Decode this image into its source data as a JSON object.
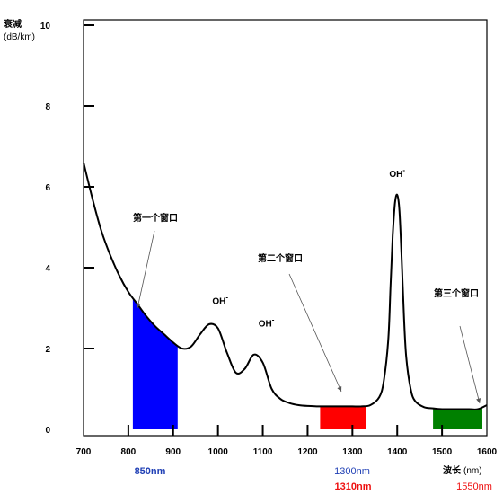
{
  "chart_data": {
    "type": "line",
    "title": "",
    "ylabel": "衰减",
    "yunit": "(dB/km)",
    "xlabel": "波长",
    "xunit": "(nm)",
    "xlim": [
      700,
      1600
    ],
    "ylim": [
      0,
      10
    ],
    "x_ticks": [
      "700",
      "800",
      "900",
      "1000",
      "1100",
      "1200",
      "1300",
      "1400",
      "1500",
      "1600"
    ],
    "y_ticks": [
      "0",
      "2",
      "4",
      "6",
      "8",
      "10"
    ],
    "grid": false,
    "series": [
      {
        "x": [
          700,
          720,
          740,
          760,
          780,
          800,
          820,
          840,
          860,
          880,
          900,
          920,
          940,
          960,
          980,
          1000,
          1020,
          1040,
          1060,
          1080,
          1100,
          1120,
          1140,
          1160,
          1180,
          1200,
          1220,
          1240,
          1260,
          1280,
          1300,
          1320,
          1340,
          1360,
          1370,
          1380,
          1385,
          1390,
          1395,
          1400,
          1405,
          1410,
          1415,
          1420,
          1430,
          1440,
          1460,
          1480,
          1500,
          1520,
          1540,
          1560,
          1580,
          1600
        ],
        "values": [
          6.6,
          5.7,
          4.9,
          4.3,
          3.8,
          3.4,
          3.1,
          2.8,
          2.55,
          2.35,
          2.15,
          2.0,
          2.05,
          2.35,
          2.6,
          2.5,
          1.9,
          1.4,
          1.5,
          1.85,
          1.65,
          1.0,
          0.75,
          0.65,
          0.6,
          0.58,
          0.57,
          0.57,
          0.57,
          0.57,
          0.57,
          0.57,
          0.6,
          0.8,
          1.2,
          2.2,
          3.5,
          4.8,
          5.6,
          5.8,
          5.4,
          4.2,
          2.8,
          1.8,
          1.0,
          0.7,
          0.55,
          0.52,
          0.5,
          0.5,
          0.5,
          0.5,
          0.5,
          0.6
        ],
        "color": "#000000"
      }
    ],
    "windows": [
      {
        "label": "第一个窗口",
        "x_range": [
          810,
          910
        ],
        "color": "#0000ff",
        "wavelength": "850nm",
        "wavelength_color": "#1f3fb5"
      },
      {
        "label": "第二个窗口",
        "x_range": [
          1228,
          1330
        ],
        "color": "#ff0000",
        "wavelength": "1300nm",
        "wavelength_color": "#1f3fb5",
        "wavelength2": "1310nm",
        "wavelength2_color": "#ee1111"
      },
      {
        "label": "第三个窗口",
        "x_range": [
          1480,
          1590
        ],
        "color": "#008000",
        "wavelength": "1550nm",
        "wavelength_color": "#ee1111"
      }
    ],
    "annotations": [
      {
        "text": "OH",
        "superscript": "-",
        "x": 1005,
        "y": 3.1
      },
      {
        "text": "OH",
        "superscript": "-",
        "x": 1108,
        "y": 2.55
      },
      {
        "text": "OH",
        "superscript": "-",
        "x": 1400,
        "y": 6.25
      }
    ]
  }
}
